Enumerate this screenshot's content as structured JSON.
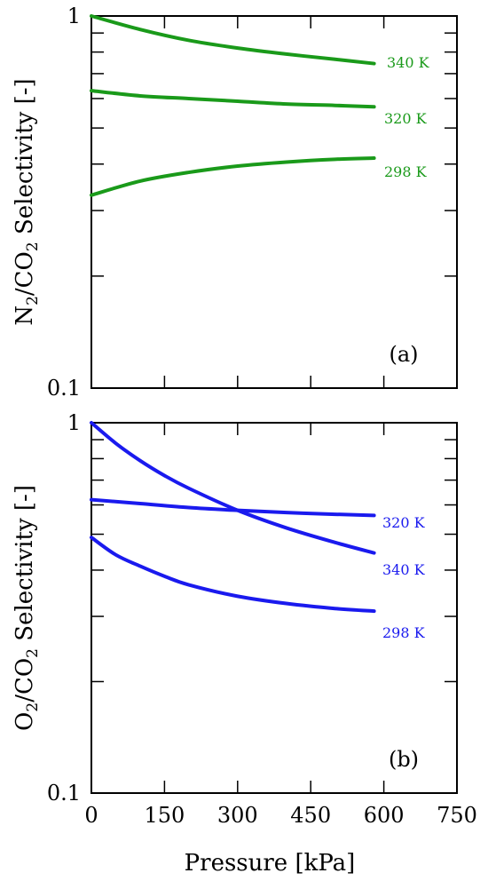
{
  "chart_data": [
    {
      "type": "line",
      "panel": "(a)",
      "xlabel": "",
      "ylabel": [
        "N",
        "2",
        "/CO",
        "2",
        " Selectivity [-]"
      ],
      "xlim": [
        0,
        750
      ],
      "ylim": [
        0.1,
        1
      ],
      "yscale": "log",
      "ytick_labels": [
        "1",
        "0.1"
      ],
      "xticks_labeled": false,
      "series": [
        {
          "name": "340 K",
          "color": "#1a9a1a",
          "x": [
            0,
            100,
            200,
            300,
            400,
            500,
            580
          ],
          "y": [
            1.0,
            0.92,
            0.86,
            0.82,
            0.79,
            0.765,
            0.745
          ]
        },
        {
          "name": "320 K",
          "color": "#1a9a1a",
          "x": [
            0,
            100,
            200,
            300,
            400,
            500,
            580
          ],
          "y": [
            0.63,
            0.61,
            0.6,
            0.59,
            0.58,
            0.575,
            0.57
          ]
        },
        {
          "name": "298 K",
          "color": "#1a9a1a",
          "x": [
            0,
            100,
            200,
            300,
            400,
            500,
            580
          ],
          "y": [
            0.33,
            0.36,
            0.38,
            0.395,
            0.405,
            0.412,
            0.415
          ]
        }
      ]
    },
    {
      "type": "line",
      "panel": "(b)",
      "xlabel": "Pressure [kPa]",
      "ylabel": [
        "O",
        "2",
        "/CO",
        "2",
        " Selectivity [-]"
      ],
      "xlim": [
        0,
        750
      ],
      "ylim": [
        0.1,
        1
      ],
      "yscale": "log",
      "xticks": [
        0,
        150,
        300,
        450,
        600,
        750
      ],
      "ytick_labels": [
        "1",
        "0.1"
      ],
      "xticks_labeled": true,
      "series": [
        {
          "name": "340 K",
          "color": "#1a1aee",
          "x": [
            0,
            50,
            100,
            150,
            200,
            300,
            400,
            500,
            580
          ],
          "y": [
            1.0,
            0.88,
            0.79,
            0.72,
            0.665,
            0.58,
            0.52,
            0.475,
            0.445
          ]
        },
        {
          "name": "320 K",
          "color": "#1a1aee",
          "x": [
            0,
            100,
            200,
            300,
            400,
            500,
            580
          ],
          "y": [
            0.62,
            0.605,
            0.59,
            0.58,
            0.572,
            0.566,
            0.562
          ]
        },
        {
          "name": "298 K",
          "color": "#1a1aee",
          "x": [
            0,
            50,
            100,
            150,
            200,
            300,
            400,
            500,
            580
          ],
          "y": [
            0.49,
            0.44,
            0.41,
            0.385,
            0.365,
            0.34,
            0.325,
            0.315,
            0.31
          ]
        }
      ]
    }
  ]
}
